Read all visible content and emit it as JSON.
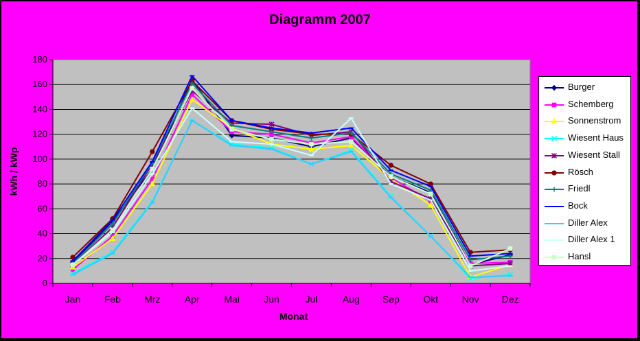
{
  "chart_data": {
    "type": "line",
    "title": "Diagramm 2007",
    "xlabel": "Monat",
    "ylabel": "kWh / kWp",
    "ylim": [
      0,
      180
    ],
    "yticks": [
      "0",
      "20",
      "40",
      "60",
      "80",
      "100",
      "120",
      "140",
      "160",
      "180"
    ],
    "categories": [
      "Jan",
      "Feb",
      "Mrz",
      "Apr",
      "Mai",
      "Jun",
      "Jul",
      "Aug",
      "Sep",
      "Okt",
      "Nov",
      "Dez"
    ],
    "grid": true,
    "legend_position": "right",
    "plot_background": "#c0c0c0",
    "series": [
      {
        "name": "Burger",
        "color": "#000080",
        "marker": "diamond",
        "values": [
          17,
          50,
          92,
          164,
          119,
          117,
          110,
          117,
          86,
          73,
          15,
          23
        ]
      },
      {
        "name": "Schemberg",
        "color": "#ff00ff",
        "marker": "square",
        "values": [
          11,
          38,
          84,
          152,
          122,
          120,
          113,
          118,
          85,
          66,
          16,
          17
        ]
      },
      {
        "name": "Sonnenstrom",
        "color": "#ffff00",
        "marker": "triangle",
        "values": [
          13,
          36,
          80,
          148,
          125,
          112,
          108,
          111,
          84,
          63,
          5,
          15
        ]
      },
      {
        "name": "Wiesent Haus",
        "color": "#00ffff",
        "marker": "x",
        "values": [
          8,
          25,
          66,
          131,
          112,
          109,
          96,
          107,
          70,
          38,
          4,
          7
        ]
      },
      {
        "name": "Wiesent Stall",
        "color": "#800080",
        "marker": "star",
        "values": [
          15,
          45,
          96,
          155,
          129,
          128,
          119,
          122,
          82,
          68,
          14,
          16
        ]
      },
      {
        "name": "Rösch",
        "color": "#800000",
        "marker": "circle",
        "values": [
          21,
          52,
          106,
          163,
          131,
          124,
          120,
          120,
          95,
          80,
          25,
          27
        ]
      },
      {
        "name": "Friedl",
        "color": "#008080",
        "marker": "plus",
        "values": [
          16,
          48,
          97,
          161,
          127,
          122,
          117,
          121,
          88,
          75,
          19,
          22
        ]
      },
      {
        "name": "Bock",
        "color": "#0000ff",
        "marker": "dash",
        "values": [
          18,
          51,
          98,
          167,
          131,
          125,
          121,
          125,
          91,
          78,
          22,
          24
        ]
      },
      {
        "name": "Diller Alex",
        "color": "#33ccff",
        "marker": "dash",
        "values": [
          7,
          24,
          65,
          131,
          111,
          108,
          96,
          106,
          69,
          38,
          5,
          6
        ]
      },
      {
        "name": "Diller Alex 1",
        "color": "#ccffff",
        "marker": "dash",
        "values": [
          15,
          41,
          88,
          141,
          114,
          112,
          103,
          133,
          80,
          67,
          10,
          14
        ]
      },
      {
        "name": "Hansl",
        "color": "#ccffcc",
        "marker": "square",
        "values": [
          15,
          43,
          92,
          157,
          124,
          116,
          112,
          114,
          86,
          72,
          14,
          28
        ]
      }
    ]
  }
}
